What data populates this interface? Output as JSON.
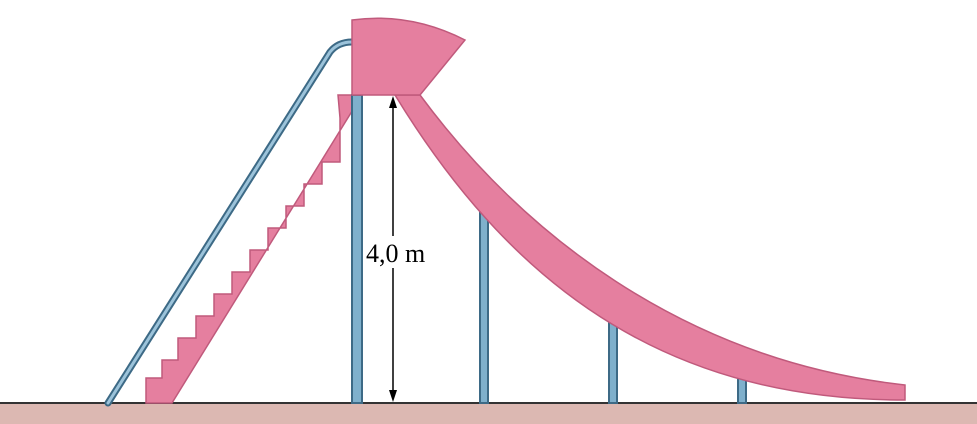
{
  "diagram": {
    "height_label": "4,0 m"
  }
}
